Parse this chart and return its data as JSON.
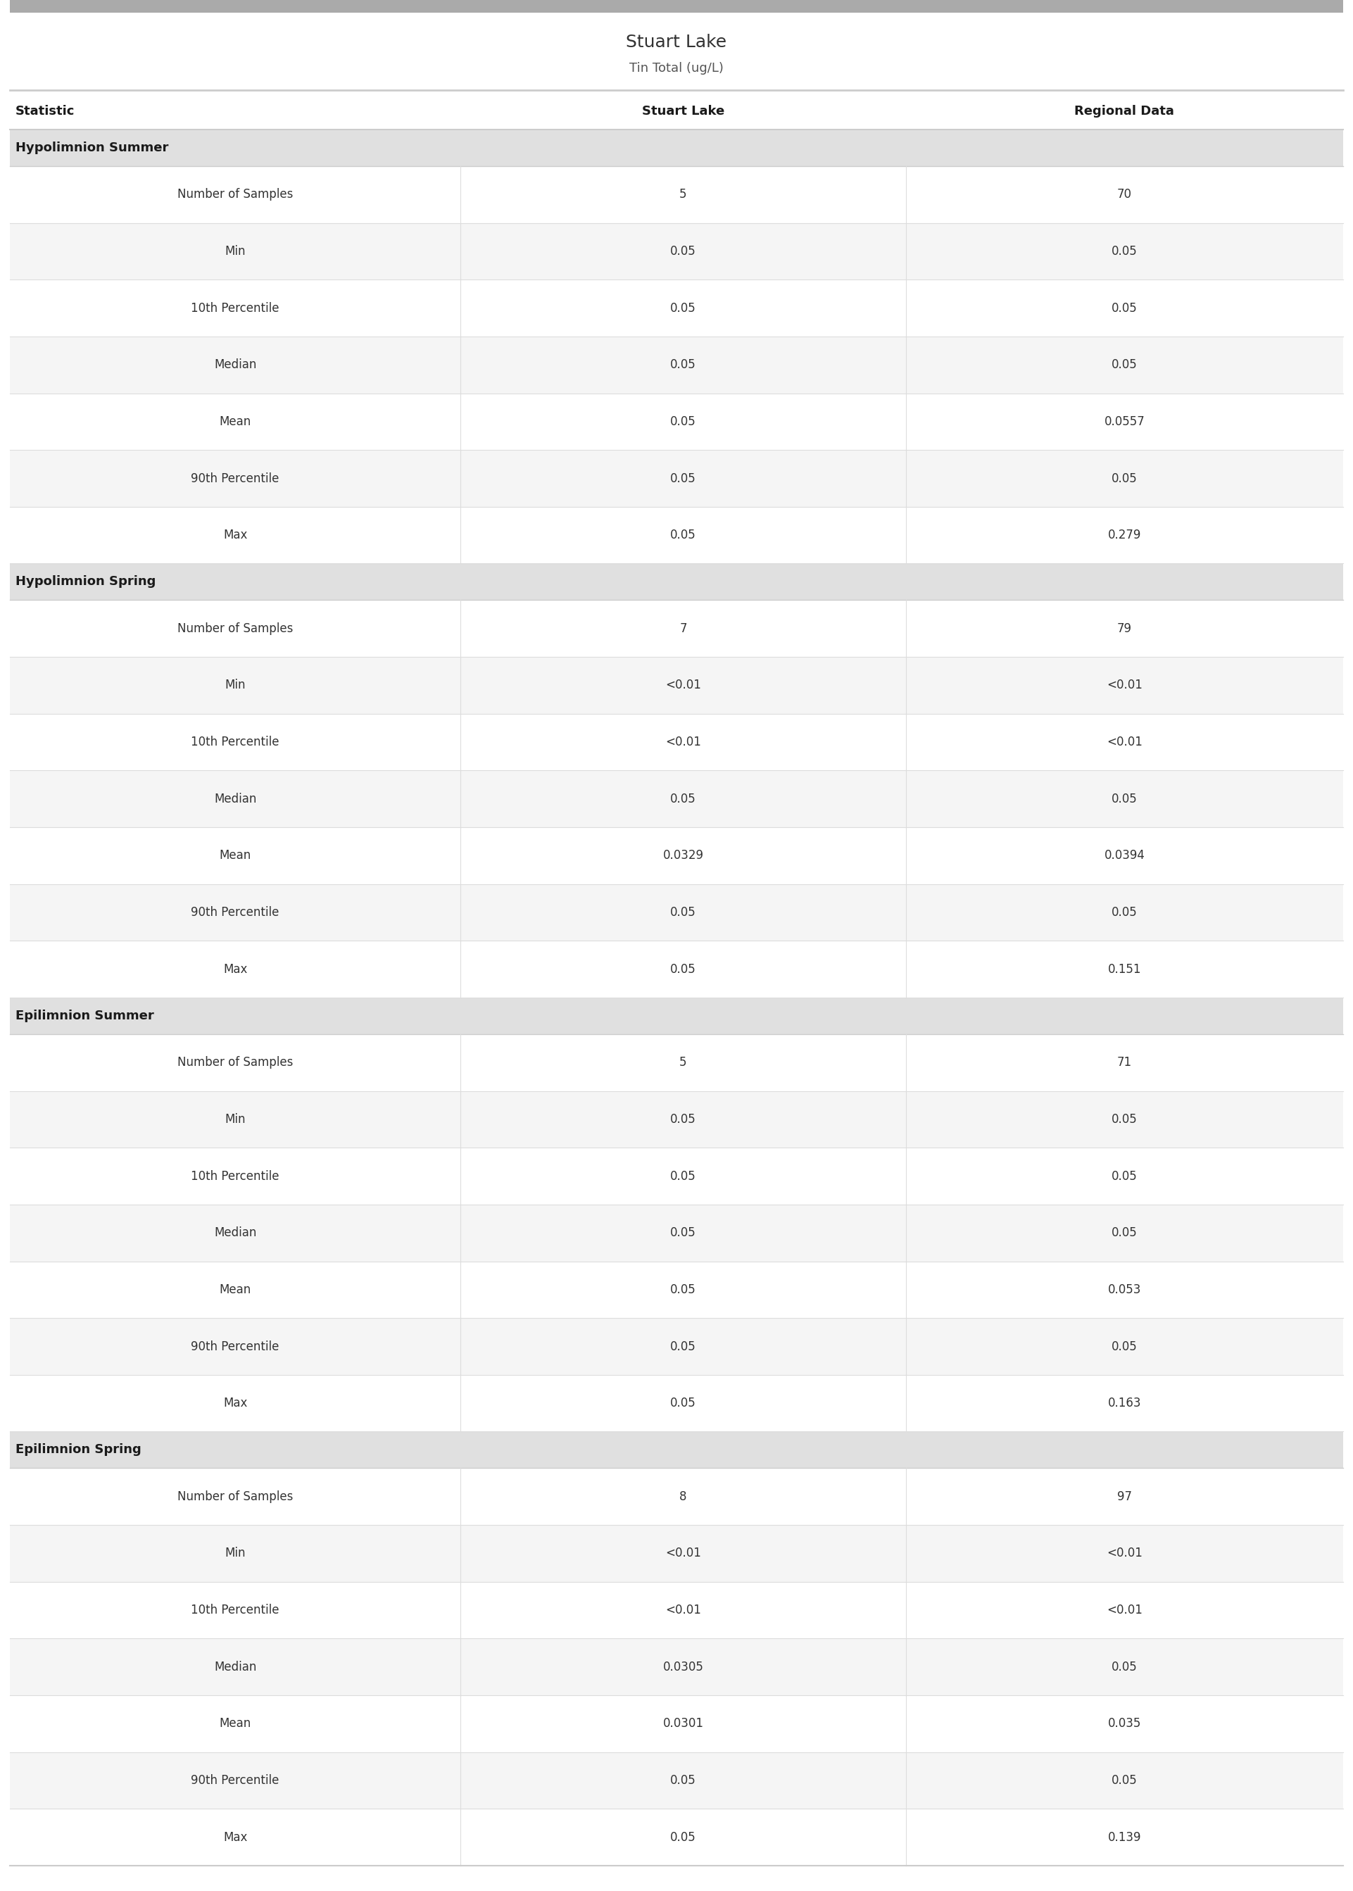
{
  "title": "Stuart Lake",
  "subtitle": "Tin Total (ug/L)",
  "col_headers": [
    "Statistic",
    "Stuart Lake",
    "Regional Data"
  ],
  "sections": [
    {
      "section_label": "Hypolimnion Summer",
      "rows": [
        [
          "Number of Samples",
          "5",
          "70"
        ],
        [
          "Min",
          "0.05",
          "0.05"
        ],
        [
          "10th Percentile",
          "0.05",
          "0.05"
        ],
        [
          "Median",
          "0.05",
          "0.05"
        ],
        [
          "Mean",
          "0.05",
          "0.0557"
        ],
        [
          "90th Percentile",
          "0.05",
          "0.05"
        ],
        [
          "Max",
          "0.05",
          "0.279"
        ]
      ]
    },
    {
      "section_label": "Hypolimnion Spring",
      "rows": [
        [
          "Number of Samples",
          "7",
          "79"
        ],
        [
          "Min",
          "<0.01",
          "<0.01"
        ],
        [
          "10th Percentile",
          "<0.01",
          "<0.01"
        ],
        [
          "Median",
          "0.05",
          "0.05"
        ],
        [
          "Mean",
          "0.0329",
          "0.0394"
        ],
        [
          "90th Percentile",
          "0.05",
          "0.05"
        ],
        [
          "Max",
          "0.05",
          "0.151"
        ]
      ]
    },
    {
      "section_label": "Epilimnion Summer",
      "rows": [
        [
          "Number of Samples",
          "5",
          "71"
        ],
        [
          "Min",
          "0.05",
          "0.05"
        ],
        [
          "10th Percentile",
          "0.05",
          "0.05"
        ],
        [
          "Median",
          "0.05",
          "0.05"
        ],
        [
          "Mean",
          "0.05",
          "0.053"
        ],
        [
          "90th Percentile",
          "0.05",
          "0.05"
        ],
        [
          "Max",
          "0.05",
          "0.163"
        ]
      ]
    },
    {
      "section_label": "Epilimnion Spring",
      "rows": [
        [
          "Number of Samples",
          "8",
          "97"
        ],
        [
          "Min",
          "<0.01",
          "<0.01"
        ],
        [
          "10th Percentile",
          "<0.01",
          "<0.01"
        ],
        [
          "Median",
          "0.0305",
          "0.05"
        ],
        [
          "Mean",
          "0.0301",
          "0.035"
        ],
        [
          "90th Percentile",
          "0.05",
          "0.05"
        ],
        [
          "Max",
          "0.05",
          "0.139"
        ]
      ]
    }
  ],
  "title_color": "#333333",
  "subtitle_color": "#555555",
  "header_text_color": "#1a1a1a",
  "section_text_color": "#1a1a1a",
  "data_text_color": "#333333",
  "section_bg": "#e0e0e0",
  "row_bg_odd": "#ffffff",
  "row_bg_even": "#f5f5f5",
  "top_bar_color": "#aaaaaa",
  "header_divider_color": "#cccccc",
  "divider_color": "#dddddd",
  "title_fontsize": 18,
  "subtitle_fontsize": 13,
  "header_fontsize": 13,
  "section_fontsize": 13,
  "data_fontsize": 12
}
